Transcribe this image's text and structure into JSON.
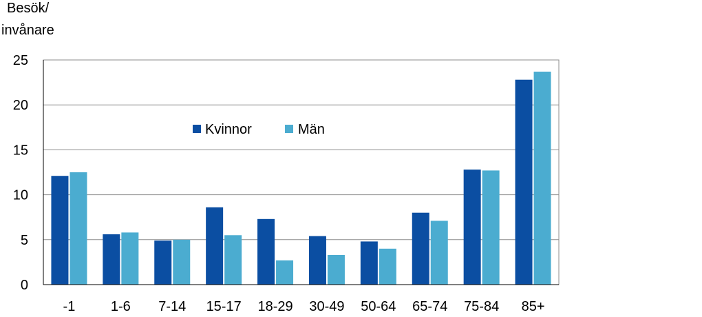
{
  "chart_data": {
    "type": "bar",
    "ylabel_lines": [
      "Besök/",
      "invånare"
    ],
    "categories": [
      "-1",
      "1-6",
      "7-14",
      "15-17",
      "18-29",
      "30-49",
      "50-64",
      "65-74",
      "75-84",
      "85+"
    ],
    "series": [
      {
        "name": "Kvinnor",
        "color": "#0B4EA2",
        "values": [
          12.1,
          5.6,
          4.9,
          8.6,
          7.3,
          5.4,
          4.8,
          8.0,
          12.8,
          22.8
        ]
      },
      {
        "name": "Män",
        "color": "#4BACD0",
        "values": [
          12.5,
          5.8,
          5.0,
          5.5,
          2.7,
          3.3,
          4.0,
          7.1,
          12.7,
          23.7
        ]
      }
    ],
    "ylim": [
      0,
      25
    ],
    "yticks": [
      0,
      5,
      10,
      15,
      20,
      25
    ],
    "grid": true,
    "legend_position": "inside-top-center"
  }
}
